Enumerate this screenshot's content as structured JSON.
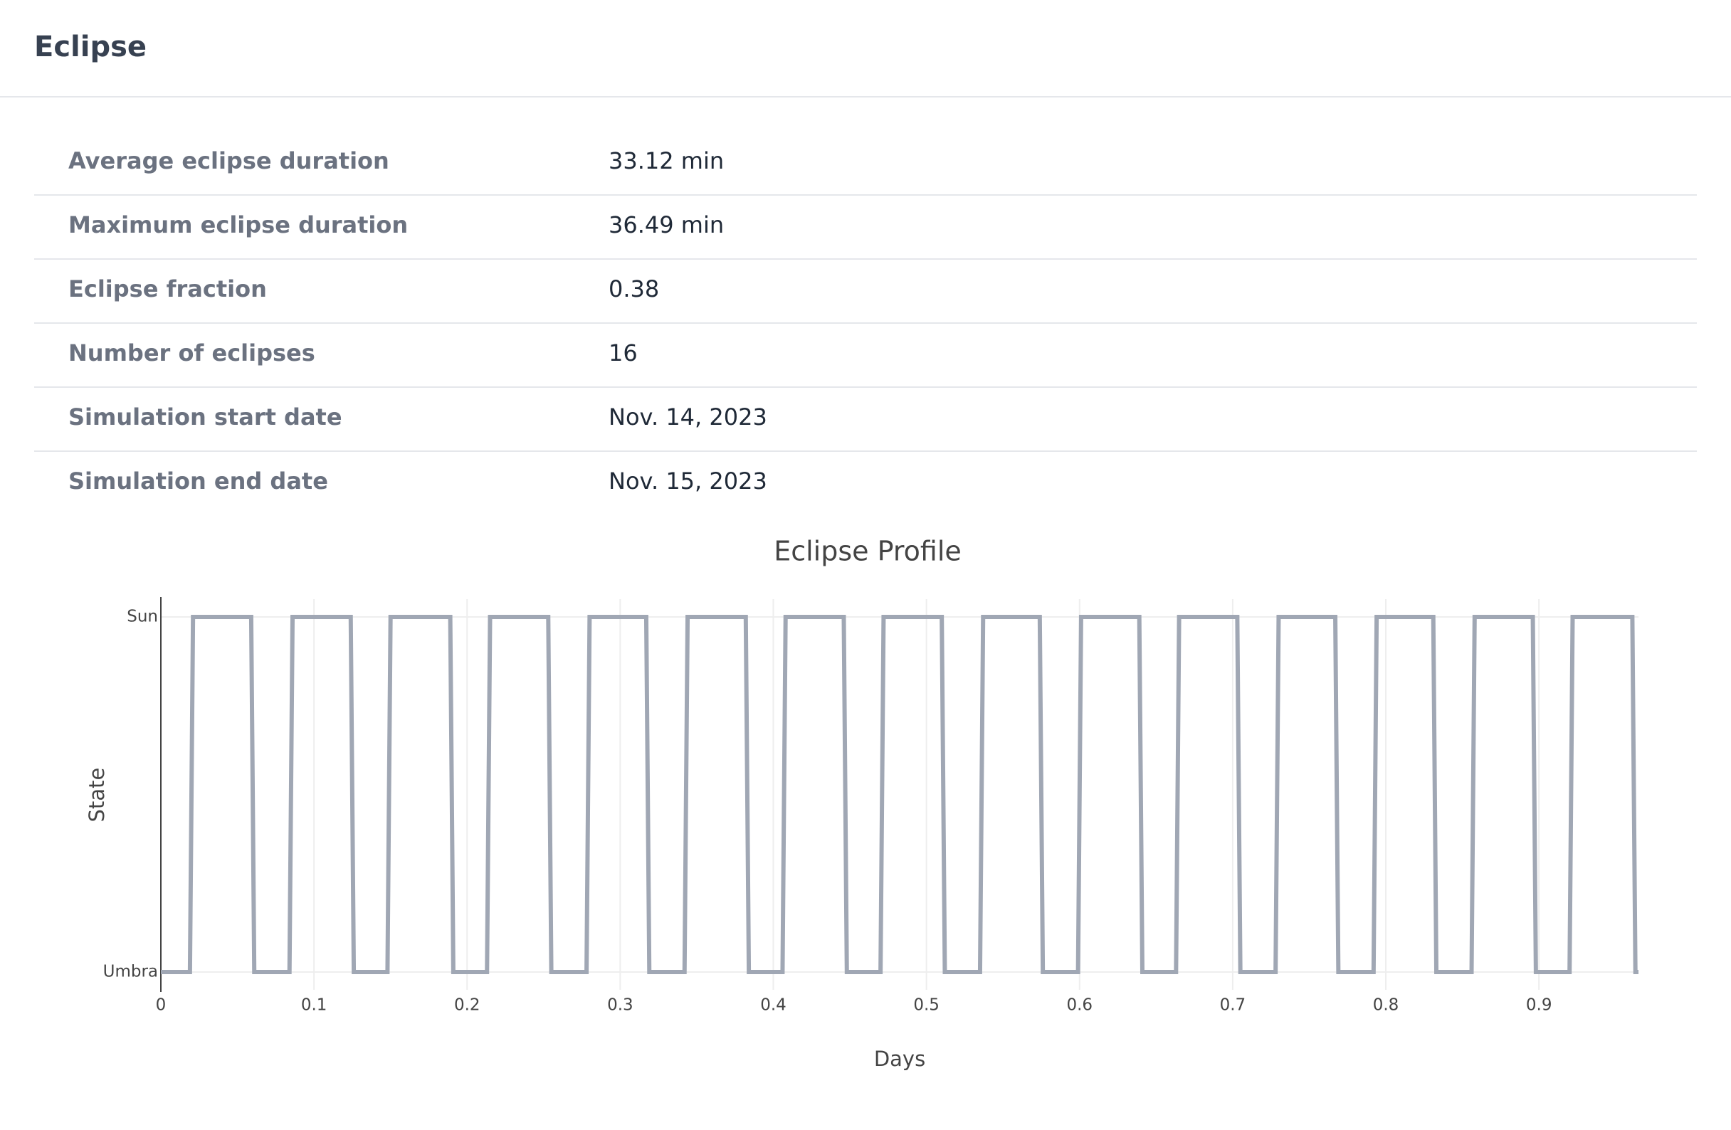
{
  "header": {
    "title": "Eclipse"
  },
  "table": {
    "rows": [
      [
        "Average eclipse duration",
        "33.12 min"
      ],
      [
        "Maximum eclipse duration",
        "36.49 min"
      ],
      [
        "Eclipse fraction",
        "0.38"
      ],
      [
        "Number of eclipses",
        "16"
      ],
      [
        "Simulation start date",
        "Nov. 14, 2023"
      ],
      [
        "Simulation end date",
        "Nov. 15, 2023"
      ]
    ]
  },
  "chart_data": {
    "type": "line",
    "title": "Eclipse Profile",
    "x_label": "Days",
    "y_label": "State",
    "x": [
      0,
      0.019,
      0.021,
      0.059,
      0.061,
      0.084,
      0.086,
      0.124,
      0.126,
      0.148,
      0.15,
      0.189,
      0.191,
      0.213,
      0.215,
      0.253,
      0.255,
      0.278,
      0.28,
      0.317,
      0.319,
      0.342,
      0.344,
      0.382,
      0.384,
      0.406,
      0.408,
      0.446,
      0.448,
      0.47,
      0.472,
      0.51,
      0.512,
      0.535,
      0.537,
      0.574,
      0.576,
      0.599,
      0.601,
      0.639,
      0.641,
      0.663,
      0.665,
      0.703,
      0.705,
      0.728,
      0.73,
      0.767,
      0.769,
      0.792,
      0.794,
      0.831,
      0.833,
      0.856,
      0.858,
      0.896,
      0.898,
      0.92,
      0.922,
      0.961,
      0.963,
      0.965
    ],
    "values": [
      0,
      0,
      1,
      1,
      0,
      0,
      1,
      1,
      0,
      0,
      1,
      1,
      0,
      0,
      1,
      1,
      0,
      0,
      1,
      1,
      0,
      0,
      1,
      1,
      0,
      0,
      1,
      1,
      0,
      0,
      1,
      1,
      0,
      0,
      1,
      1,
      0,
      0,
      1,
      1,
      0,
      0,
      1,
      1,
      0,
      0,
      1,
      1,
      0,
      0,
      1,
      1,
      0,
      0,
      1,
      1,
      0,
      0,
      1,
      1,
      0,
      0
    ],
    "color": "#a0a7b4",
    "xlim": [
      0,
      0.965
    ],
    "xticks": [
      0,
      0.1,
      0.2,
      0.3,
      0.4,
      0.5,
      0.6,
      0.7,
      0.8,
      0.9
    ],
    "ylim": [
      -0.05,
      1.05
    ],
    "yticks": [
      {
        "value": 0,
        "label": "Umbra"
      },
      {
        "value": 1,
        "label": "Sun"
      }
    ],
    "grid": true
  }
}
